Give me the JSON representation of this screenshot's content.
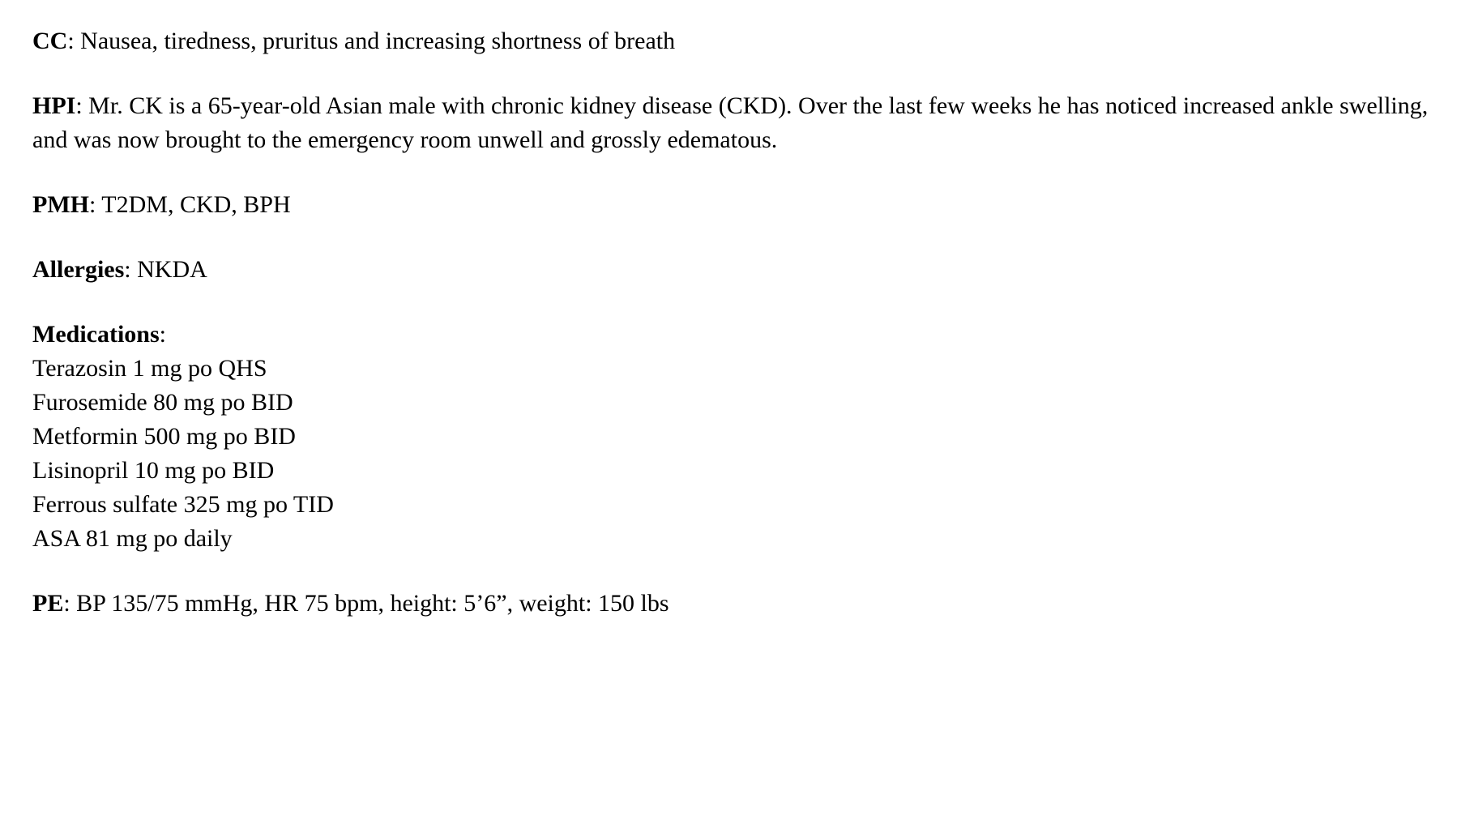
{
  "cc": {
    "label": "CC",
    "text": ": Nausea, tiredness, pruritus and increasing shortness of breath"
  },
  "hpi": {
    "label": "HPI",
    "text": ": Mr. CK is a 65-year-old Asian male with chronic kidney disease (CKD). Over the last few weeks he has noticed increased ankle swelling, and was now brought to the emergency room unwell and grossly edematous."
  },
  "pmh": {
    "label": "PMH",
    "text": ": T2DM, CKD, BPH"
  },
  "allergies": {
    "label": "Allergies",
    "text": ": NKDA"
  },
  "medications": {
    "label": "Medications",
    "colon": ":",
    "items": [
      "Terazosin 1 mg po QHS",
      "Furosemide 80 mg po BID",
      "Metformin 500 mg po BID",
      "Lisinopril 10 mg po BID",
      "Ferrous sulfate 325 mg po TID",
      "ASA 81 mg po daily"
    ]
  },
  "pe": {
    "label": "PE",
    "text": ": BP 135/75 mmHg, HR 75 bpm, height: 5’6”, weight: 150 lbs"
  }
}
